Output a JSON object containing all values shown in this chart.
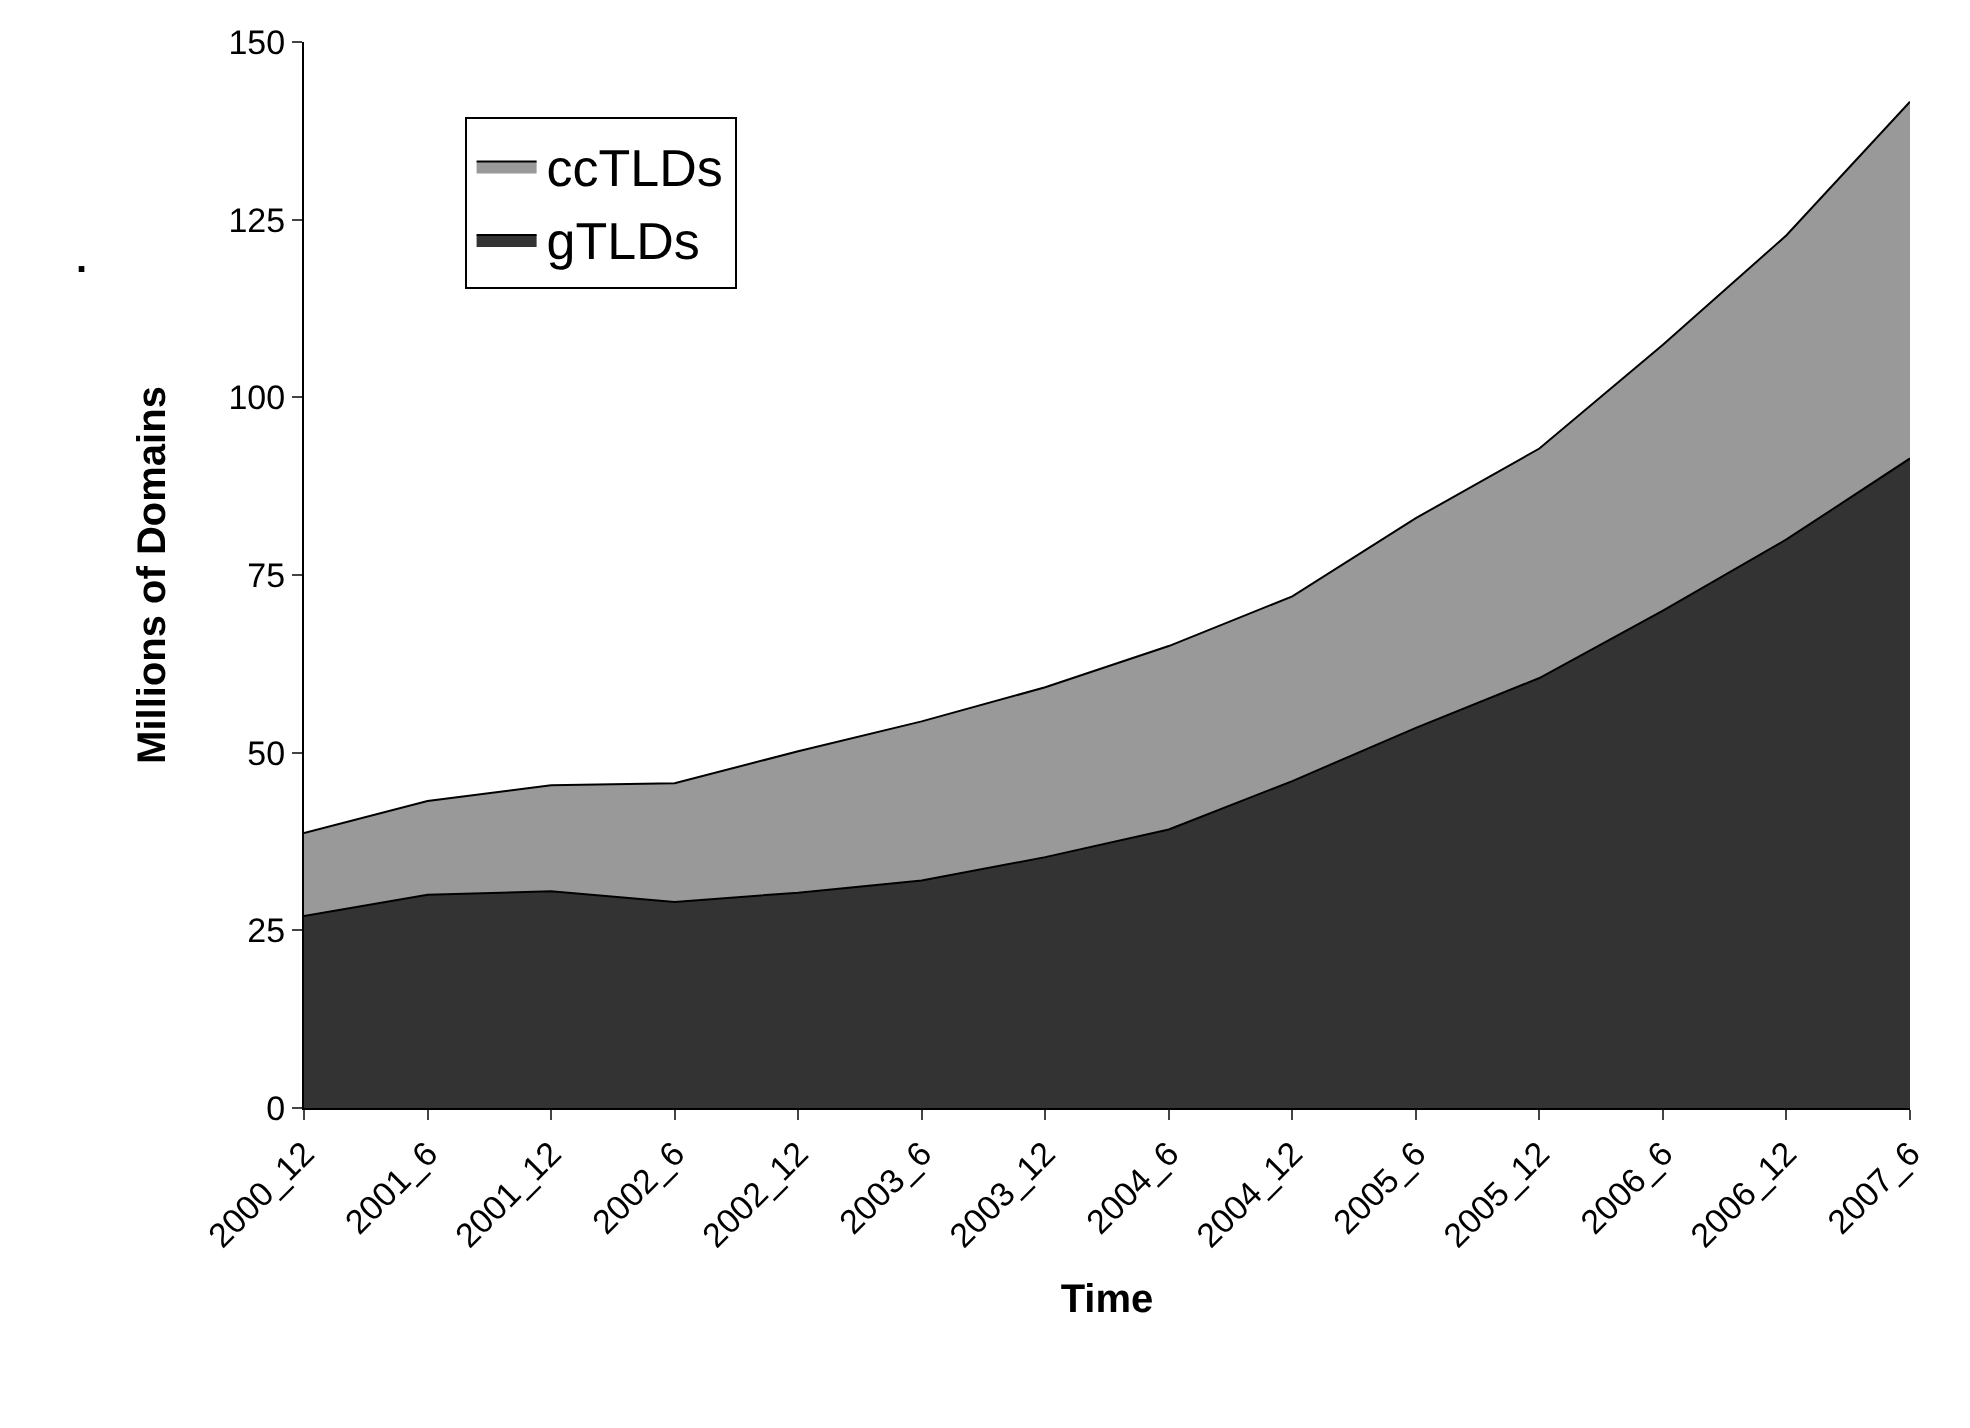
{
  "chart_data": {
    "type": "area",
    "stacked": true,
    "xlabel": "Time",
    "ylabel": "Millions of Domains",
    "annotations": [
      "."
    ],
    "categories": [
      "2000_12",
      "2001_6",
      "2001_12",
      "2002_6",
      "2002_12",
      "2003_6",
      "2003_12",
      "2004_6",
      "2004_12",
      "2005_6",
      "2005_12",
      "2006_6",
      "2006_12",
      "2007_6"
    ],
    "series": [
      {
        "name": "gTLDs",
        "color": "#333333",
        "values": [
          27,
          30,
          30.5,
          29,
          30.3,
          32,
          35.3,
          39.2,
          46,
          53.5,
          60.5,
          70,
          80,
          91.4
        ]
      },
      {
        "name": "ccTLDs",
        "color": "#999999",
        "values": [
          11.7,
          13.2,
          14.9,
          16.7,
          19.9,
          22.4,
          23.9,
          25.8,
          26,
          29.5,
          32.3,
          37.4,
          42.8,
          50.2
        ]
      }
    ],
    "ylim": [
      0,
      150
    ],
    "yticks": [
      0,
      25,
      50,
      75,
      100,
      125,
      150
    ],
    "legend": "top left"
  }
}
